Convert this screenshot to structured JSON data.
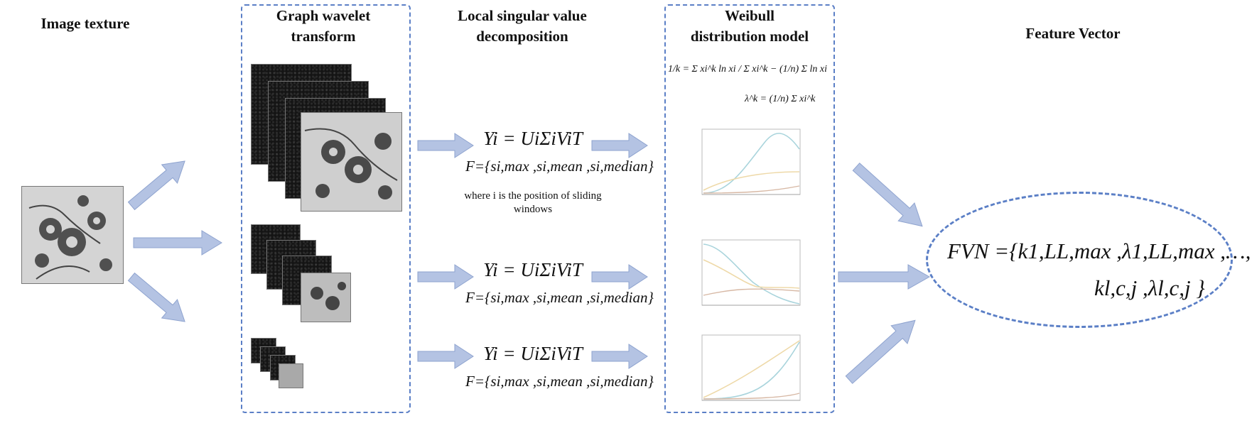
{
  "headers": {
    "image_texture": "Image texture",
    "gwt_line1": "Graph wavelet",
    "gwt_line2": "transform",
    "svd_line1": "Local singular value",
    "svd_line2": "decomposition",
    "weibull_line1": "Weibull",
    "weibull_line2": "distribution model",
    "feature_vector": "Feature Vector"
  },
  "svd": {
    "equation": "Yi = UiΣiViT",
    "features": "F={si,max ,si,mean ,si,median}",
    "note_line1": "where i is the position of sliding",
    "note_line2": "windows"
  },
  "weibull": {
    "formula_k": "1/k = Σ xi^k ln xi / Σ xi^k − (1/n) Σ ln xi",
    "formula_lambda": "λ^k = (1/n) Σ xi^k"
  },
  "feature": {
    "line1": "FVN ={k1,LL,max ,λ1,LL,max ,…,",
    "line2": "kl,c,j ,λl,c,j }"
  },
  "colors": {
    "dashed_border": "#5b7fc6",
    "arrow_fill": "#b4c3e3",
    "arrow_stroke": "#8ea3cf",
    "curve_blue": "#a9d4dc",
    "curve_orange": "#eed9a8",
    "curve_brown": "#d7b8a4"
  }
}
